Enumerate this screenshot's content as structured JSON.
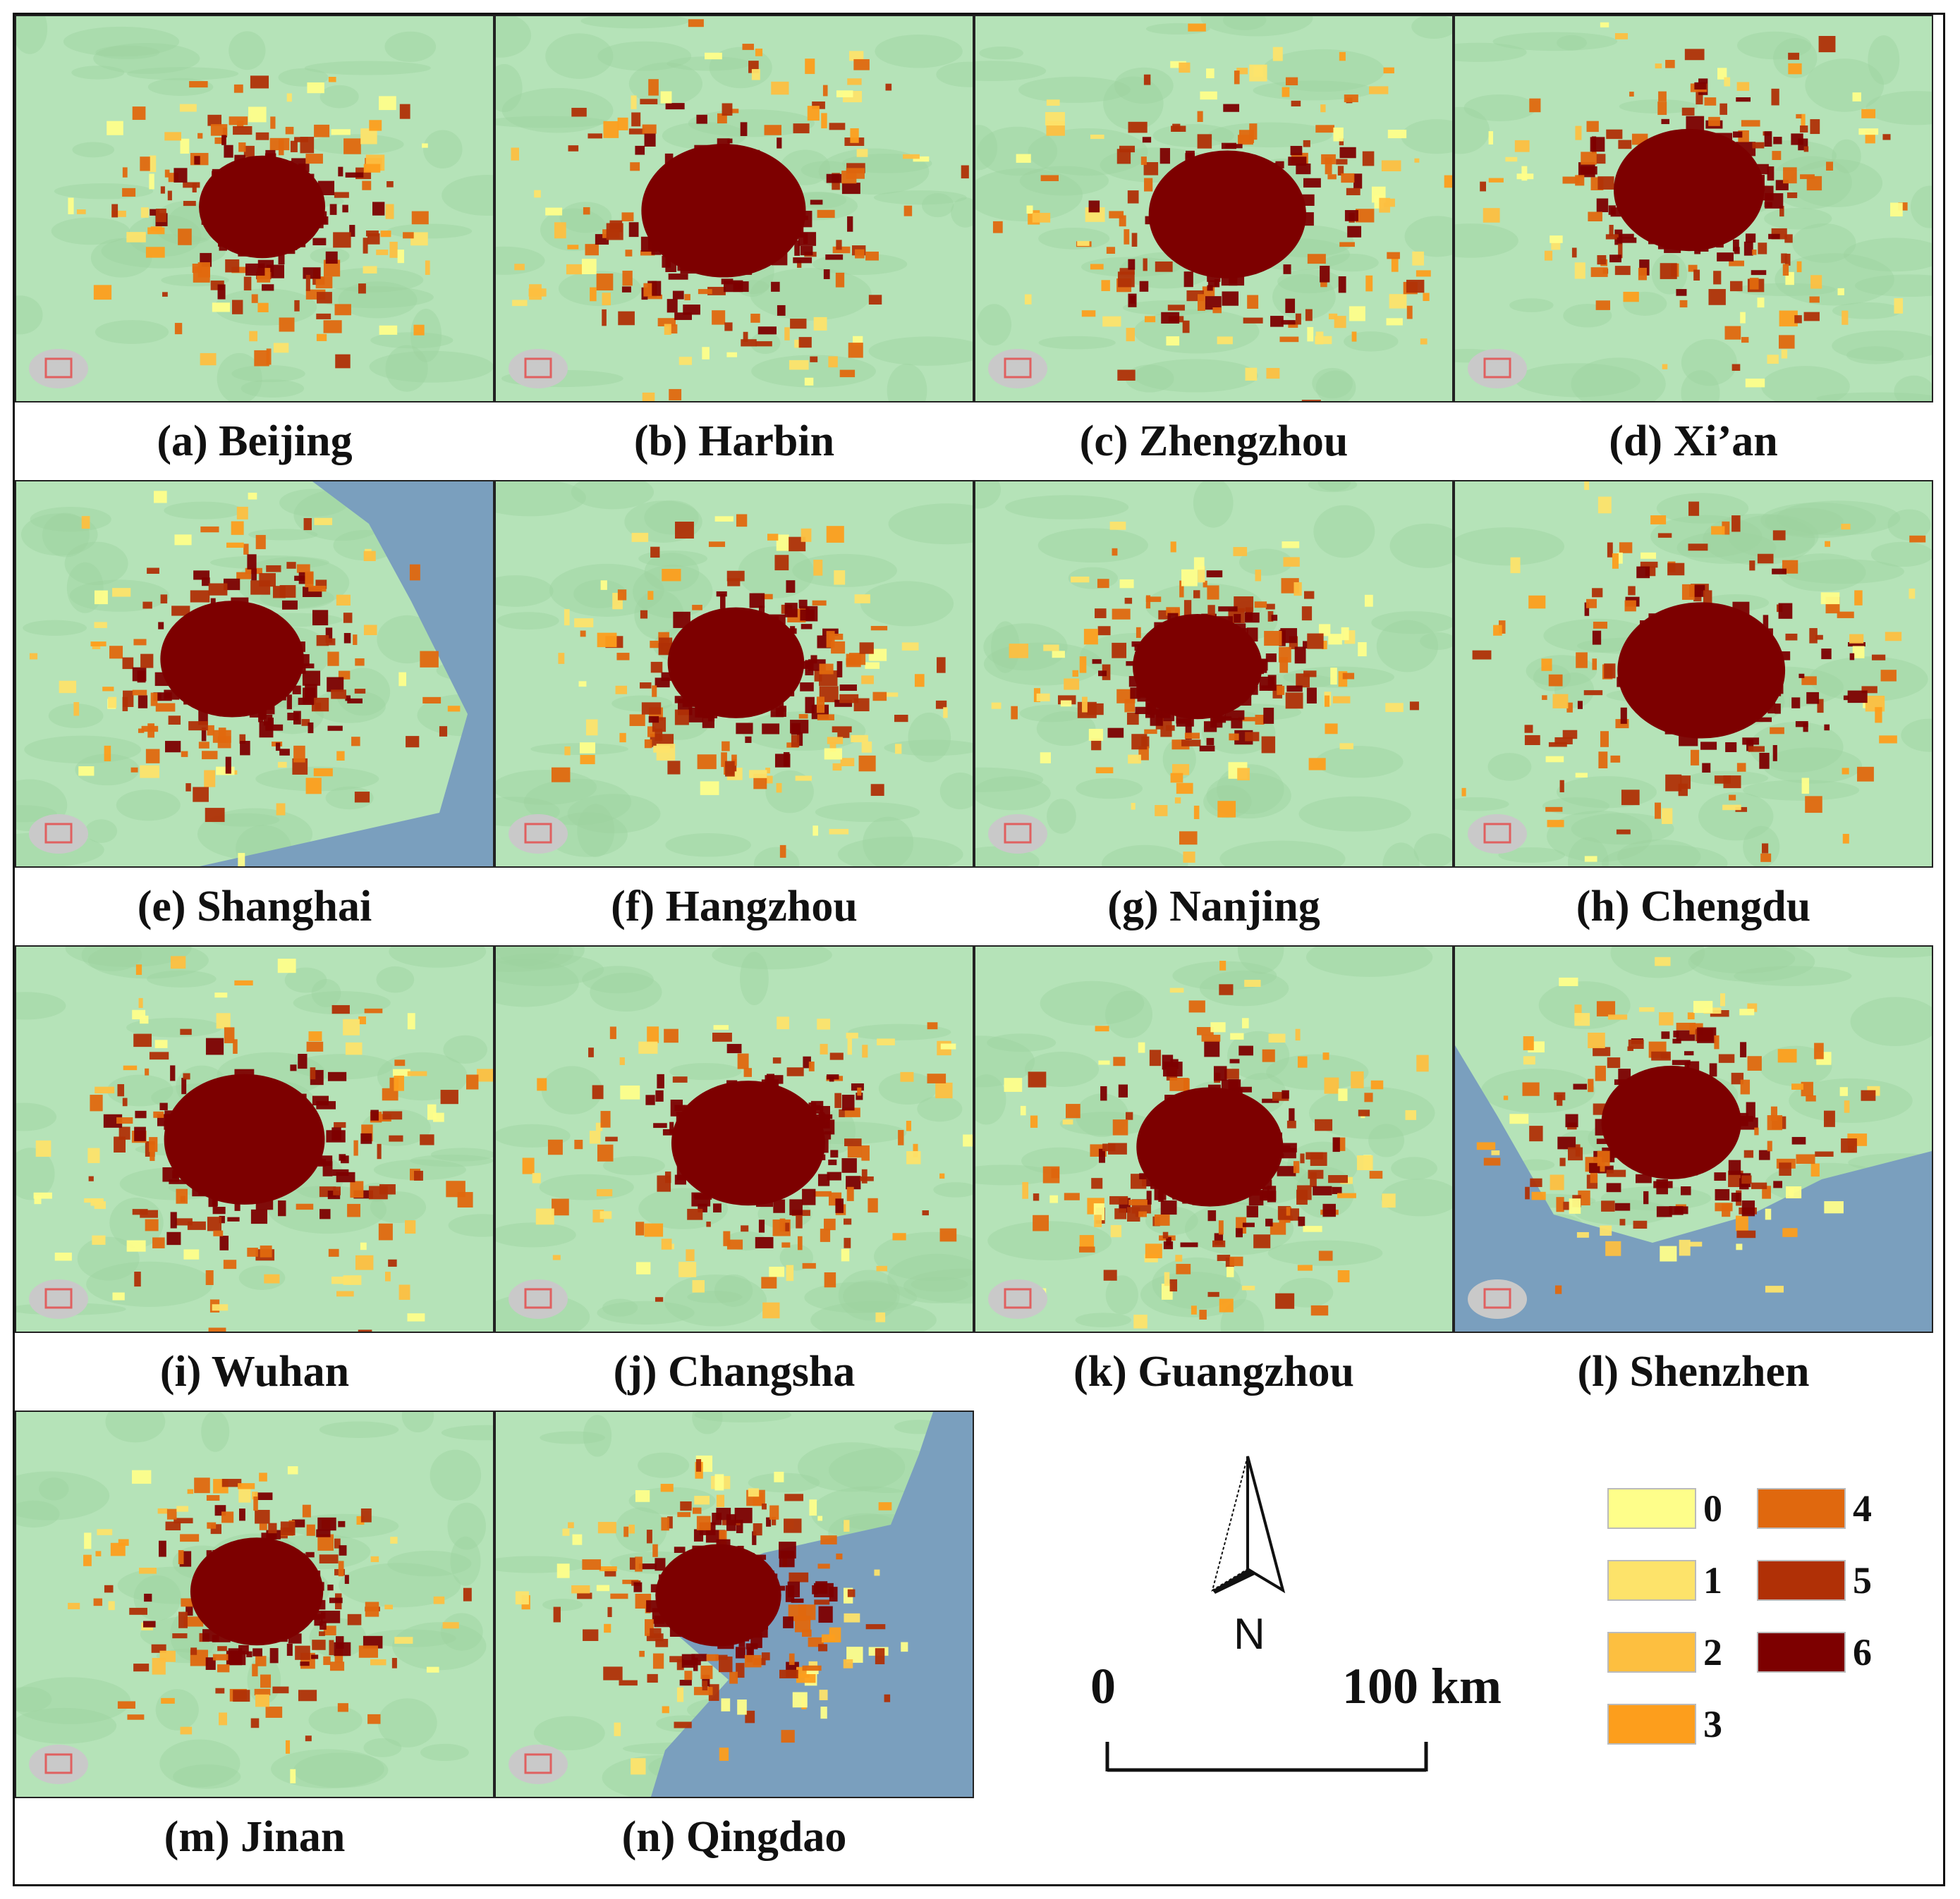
{
  "panels": [
    {
      "id": "a",
      "caption": "(a) Beijing",
      "sea": ""
    },
    {
      "id": "b",
      "caption": "(b) Harbin",
      "sea": ""
    },
    {
      "id": "c",
      "caption": "(c) Zhengzhou",
      "sea": ""
    },
    {
      "id": "d",
      "caption": "(d) Xi’an",
      "sea": ""
    },
    {
      "id": "e",
      "caption": "(e) Shanghai",
      "sea": "east"
    },
    {
      "id": "f",
      "caption": "(f) Hangzhou",
      "sea": ""
    },
    {
      "id": "g",
      "caption": "(g) Nanjing",
      "sea": ""
    },
    {
      "id": "h",
      "caption": "(h) Chengdu",
      "sea": ""
    },
    {
      "id": "i",
      "caption": "(i) Wuhan",
      "sea": ""
    },
    {
      "id": "j",
      "caption": "(j) Changsha",
      "sea": ""
    },
    {
      "id": "k",
      "caption": "(k) Guangzhou",
      "sea": ""
    },
    {
      "id": "l",
      "caption": "(l) Shenzhen",
      "sea": "south"
    },
    {
      "id": "m",
      "caption": "(m) Jinan",
      "sea": ""
    },
    {
      "id": "n",
      "caption": "(n) Qingdao",
      "sea": "southeast"
    }
  ],
  "legend": [
    {
      "label": "0",
      "color": "#fefe8a"
    },
    {
      "label": "1",
      "color": "#fde36a"
    },
    {
      "label": "2",
      "color": "#fdbf40"
    },
    {
      "label": "3",
      "color": "#fd9e1c"
    },
    {
      "label": "4",
      "color": "#e0680e"
    },
    {
      "label": "5",
      "color": "#b03006"
    },
    {
      "label": "6",
      "color": "#7d0000"
    }
  ],
  "scale_bar": {
    "start_label": "0",
    "end_label": "100 km"
  },
  "north_arrow": {
    "label": "N",
    "icon": "north-arrow-icon"
  },
  "colors": {
    "terrain": "#b5e3b8",
    "terrain_shade": "#9dd3a0",
    "water": "#7a9fbe",
    "inset_land": "#c9c9c9",
    "inset_box": "#e06060",
    "border": "#222222"
  }
}
